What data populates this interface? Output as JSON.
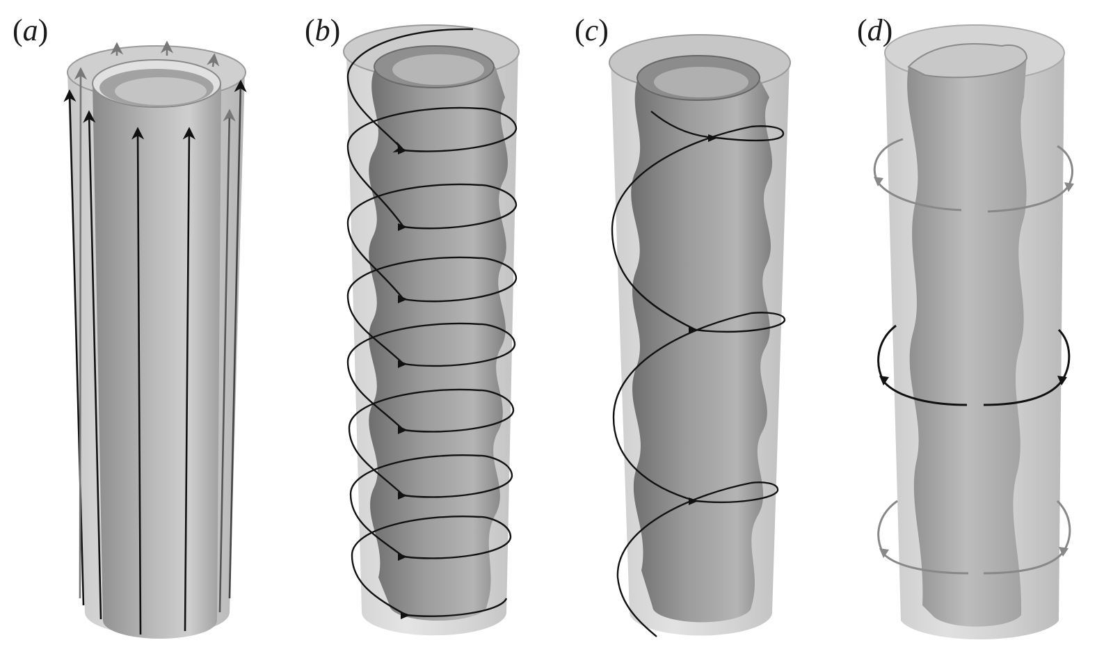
{
  "panels": [
    {
      "id": "a",
      "label": "a"
    },
    {
      "id": "b",
      "label": "b"
    },
    {
      "id": "c",
      "label": "c"
    },
    {
      "id": "d",
      "label": "d"
    }
  ],
  "colors": {
    "background": "#ffffff",
    "outer_shell": "#c9c9c9",
    "inner_shell": "#9a9a9a",
    "trajectory": "#111111",
    "faint_trajectory": "#7a7a7a"
  }
}
